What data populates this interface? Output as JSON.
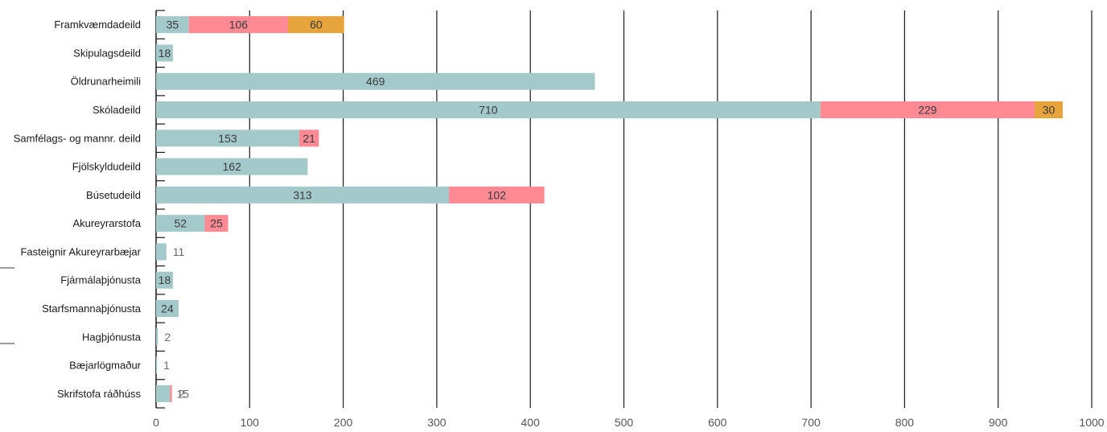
{
  "chart_data": {
    "type": "bar",
    "orientation": "horizontal",
    "stacked": true,
    "categories": [
      "Framkvæmdadeild",
      "Skipulagsdeild",
      "Öldrunarheimili",
      "Skóladeild",
      "Samfélags- og mannr. deild",
      "Fjölskyldudeild",
      "Búsetudeild",
      "Akureyrarstofa",
      "Fasteignir Akureyrarbæjar",
      "Fjármálaþjónusta",
      "Starfsmannaþjónusta",
      "Hagþjónusta",
      "Bæjarlögmaður",
      "Skrifstofa ráðhúss"
    ],
    "series": [
      {
        "color": "#a3c9cb",
        "values": [
          35,
          18,
          469,
          710,
          153,
          162,
          313,
          52,
          11,
          18,
          24,
          2,
          1,
          15
        ]
      },
      {
        "color": "#ff8a94",
        "values": [
          106,
          null,
          null,
          229,
          21,
          null,
          102,
          25,
          null,
          null,
          null,
          null,
          null,
          2
        ]
      },
      {
        "color": "#e8a43c",
        "values": [
          60,
          null,
          null,
          30,
          null,
          null,
          null,
          null,
          null,
          null,
          null,
          null,
          null,
          null
        ]
      }
    ],
    "labels": [
      [
        "35",
        "106",
        "60"
      ],
      [
        "18"
      ],
      [
        "469"
      ],
      [
        "710",
        "229",
        "30"
      ],
      [
        "153",
        "21"
      ],
      [
        "162"
      ],
      [
        "313",
        "102"
      ],
      [
        "52",
        "25"
      ],
      [
        "11"
      ],
      [
        "18"
      ],
      [
        "24"
      ],
      [
        "2"
      ],
      [
        "1"
      ],
      [
        "15",
        "2"
      ]
    ],
    "xlim": [
      0,
      1000
    ],
    "xticks": [
      0,
      100,
      200,
      300,
      400,
      500,
      600,
      700,
      800,
      900,
      1000
    ],
    "xlabel": "",
    "ylabel": "",
    "title": "",
    "grid": "vertical",
    "grid_color": "#1a1a1a",
    "legend": "none"
  }
}
